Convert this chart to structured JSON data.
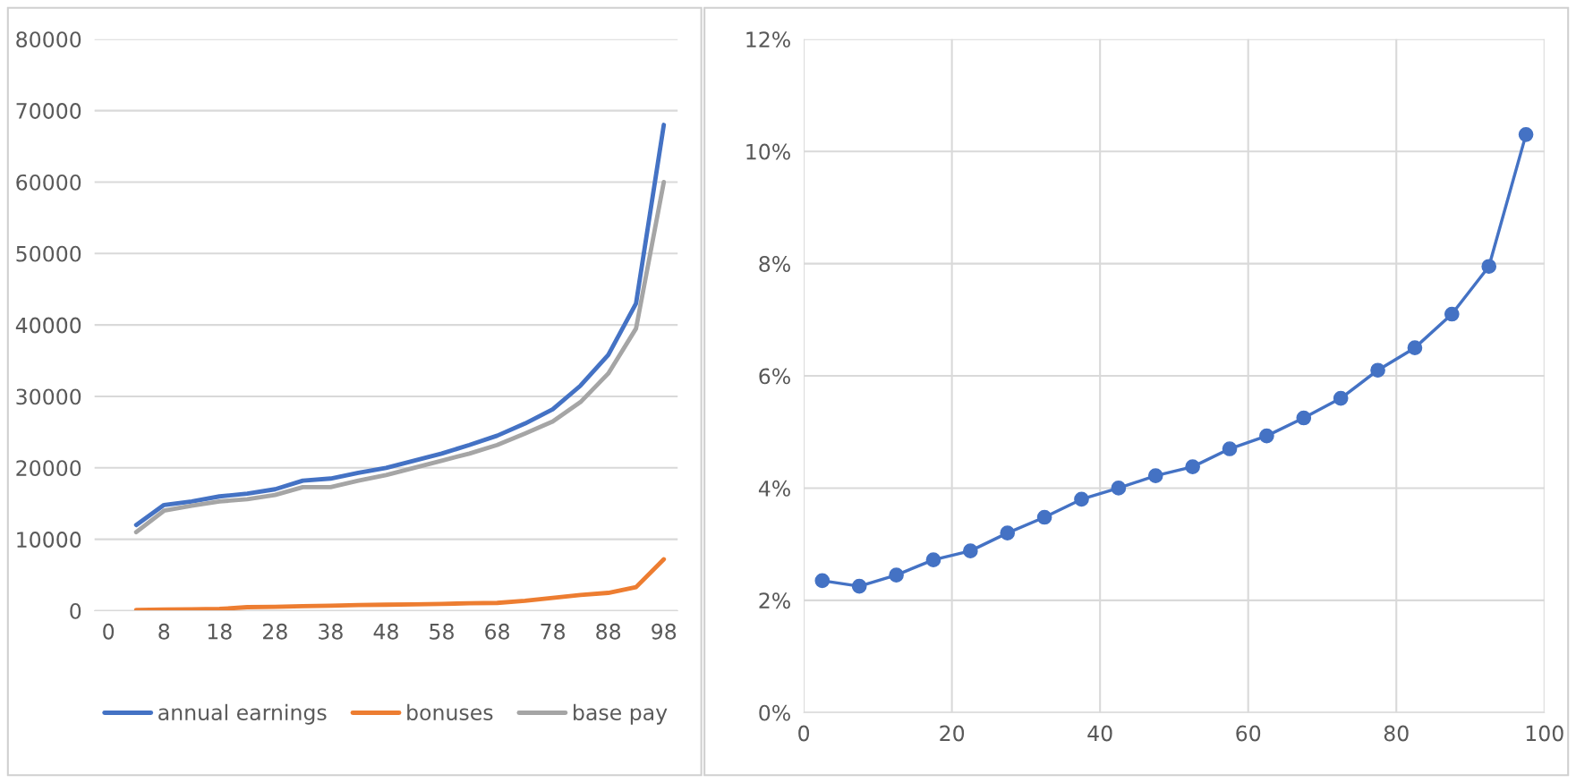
{
  "chart_data": [
    {
      "type": "line",
      "categories": [
        "0",
        null,
        "8",
        null,
        "18",
        null,
        "28",
        null,
        "38",
        null,
        "48",
        null,
        "58",
        null,
        "68",
        null,
        "78",
        null,
        "88",
        null,
        "98"
      ],
      "series": [
        {
          "name": "annual earnings",
          "color": "#4472c4",
          "values": [
            null,
            12000,
            14800,
            15300,
            16000,
            16400,
            17000,
            18200,
            18500,
            19300,
            20000,
            21000,
            22000,
            23200,
            24500,
            26200,
            28200,
            31500,
            35800,
            43000,
            68000
          ]
        },
        {
          "name": "bonuses",
          "color": "#ed7d31",
          "values": [
            null,
            100,
            150,
            200,
            250,
            500,
            550,
            650,
            700,
            800,
            850,
            900,
            950,
            1050,
            1100,
            1400,
            1800,
            2200,
            2500,
            3300,
            7200
          ]
        },
        {
          "name": "base pay",
          "color": "#a5a5a5",
          "values": [
            null,
            11000,
            14000,
            14700,
            15300,
            15600,
            16200,
            17300,
            17300,
            18200,
            19000,
            20000,
            21000,
            22000,
            23200,
            24800,
            26500,
            29200,
            33200,
            39500,
            60000
          ]
        }
      ],
      "ylim": [
        0,
        80000
      ],
      "yticks": [
        0,
        10000,
        20000,
        30000,
        40000,
        50000,
        60000,
        70000,
        80000
      ],
      "grid": "y",
      "legend": "bottom",
      "marker": "none"
    },
    {
      "type": "line",
      "x": [
        2.5,
        7.5,
        12.5,
        17.5,
        22.5,
        27.5,
        32.5,
        37.5,
        42.5,
        47.5,
        52.5,
        57.5,
        62.5,
        67.5,
        72.5,
        77.5,
        82.5,
        87.5,
        92.5,
        97.5
      ],
      "series": [
        {
          "color": "#4472c4",
          "values": [
            2.35,
            2.25,
            2.45,
            2.72,
            2.88,
            3.2,
            3.48,
            3.8,
            4.0,
            4.22,
            4.38,
            4.7,
            4.93,
            5.25,
            5.6,
            6.1,
            6.5,
            7.1,
            7.95,
            10.3
          ]
        }
      ],
      "xlim": [
        0,
        100
      ],
      "xticks": [
        0,
        20,
        40,
        60,
        80,
        100
      ],
      "ylim": [
        0,
        12
      ],
      "yticks": [
        {
          "value": 0,
          "label": "0%"
        },
        {
          "value": 2,
          "label": "2%"
        },
        {
          "value": 4,
          "label": "4%"
        },
        {
          "value": 6,
          "label": "6%"
        },
        {
          "value": 8,
          "label": "8%"
        },
        {
          "value": 10,
          "label": "10%"
        },
        {
          "value": 12,
          "label": "12%"
        }
      ],
      "grid": true,
      "marker": "circle"
    }
  ]
}
